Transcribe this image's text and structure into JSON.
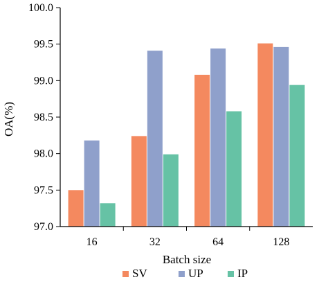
{
  "chart_data": {
    "type": "bar",
    "categories": [
      "16",
      "32",
      "64",
      "128"
    ],
    "series": [
      {
        "name": "SV",
        "values": [
          97.5,
          98.24,
          99.08,
          99.51
        ],
        "color": "#f4895f"
      },
      {
        "name": "UP",
        "values": [
          98.18,
          99.41,
          99.44,
          99.46
        ],
        "color": "#8fa0cb"
      },
      {
        "name": "IP",
        "values": [
          97.32,
          97.99,
          98.58,
          98.94
        ],
        "color": "#66c2a5"
      }
    ],
    "xlabel": "Batch size",
    "ylabel": "OA(%)",
    "ylim": [
      97.0,
      100.0
    ],
    "yticks": [
      "97.0",
      "97.5",
      "98.0",
      "98.5",
      "99.0",
      "99.5",
      "100.0"
    ],
    "grid": false,
    "legend_position": "bottom"
  }
}
